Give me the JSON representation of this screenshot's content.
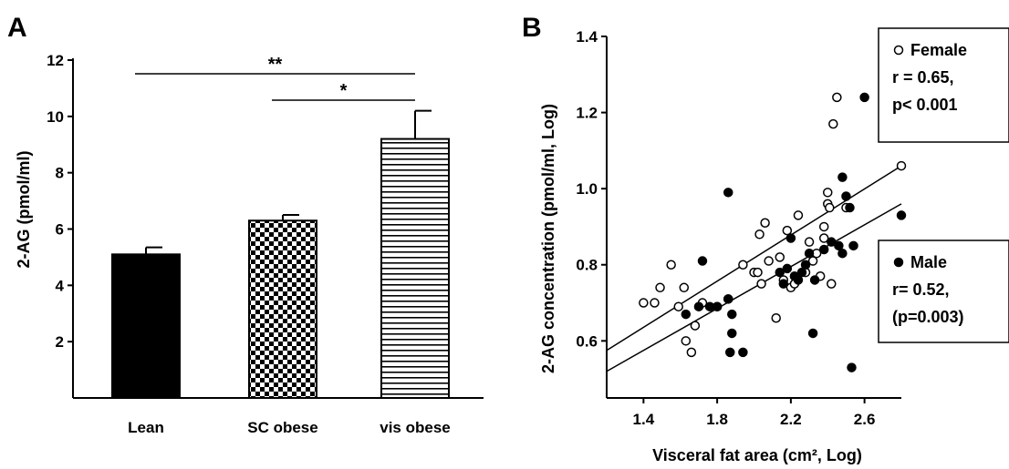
{
  "panels": {
    "A": "A",
    "B": "B"
  },
  "chart_data": [
    {
      "type": "bar",
      "panel": "A",
      "categories": [
        "Lean",
        "SC obese",
        "vis obese"
      ],
      "values": [
        5.1,
        6.3,
        9.2
      ],
      "errors": [
        0.25,
        0.2,
        1.0
      ],
      "ylabel": "2-AG (pmol/ml)",
      "ylim": [
        0,
        12
      ],
      "yticks": [
        2,
        4,
        6,
        8,
        10,
        12
      ],
      "fills": [
        "solid-black",
        "checkerboard",
        "horizontal-stripes"
      ],
      "significance": [
        {
          "from": "Lean",
          "to": "vis obese",
          "label": "**"
        },
        {
          "from": "SC obese",
          "to": "vis obese",
          "label": "*"
        }
      ],
      "grid": false
    },
    {
      "type": "scatter",
      "panel": "B",
      "xlabel": "Visceral fat area (cm², Log)",
      "ylabel": "2-AG concentration (pmol/ml, Log)",
      "xlim": [
        1.2,
        2.8
      ],
      "ylim": [
        0.45,
        1.4
      ],
      "xticks": [
        "1.4",
        "1.8",
        "2.2",
        "2.6"
      ],
      "yticks": [
        "0.6",
        "0.8",
        "1.0",
        "1.2",
        "1.4"
      ],
      "grid": false,
      "series": [
        {
          "name": "Female",
          "marker": "open-circle",
          "annotation": [
            "r = 0.65,",
            "p< 0.001"
          ],
          "points": [
            [
              1.4,
              0.7
            ],
            [
              1.46,
              0.7
            ],
            [
              1.49,
              0.74
            ],
            [
              1.55,
              0.8
            ],
            [
              1.59,
              0.69
            ],
            [
              1.62,
              0.74
            ],
            [
              1.63,
              0.6
            ],
            [
              1.66,
              0.57
            ],
            [
              1.68,
              0.64
            ],
            [
              1.72,
              0.7
            ],
            [
              1.8,
              0.69
            ],
            [
              1.86,
              0.71
            ],
            [
              1.94,
              0.8
            ],
            [
              2.0,
              0.78
            ],
            [
              2.02,
              0.78
            ],
            [
              2.03,
              0.88
            ],
            [
              2.04,
              0.75
            ],
            [
              2.06,
              0.91
            ],
            [
              2.08,
              0.81
            ],
            [
              2.12,
              0.66
            ],
            [
              2.14,
              0.82
            ],
            [
              2.16,
              0.76
            ],
            [
              2.18,
              0.89
            ],
            [
              2.2,
              0.74
            ],
            [
              2.22,
              0.75
            ],
            [
              2.24,
              0.93
            ],
            [
              2.28,
              0.78
            ],
            [
              2.3,
              0.86
            ],
            [
              2.32,
              0.81
            ],
            [
              2.34,
              0.83
            ],
            [
              2.36,
              0.77
            ],
            [
              2.38,
              0.87
            ],
            [
              2.38,
              0.9
            ],
            [
              2.4,
              0.96
            ],
            [
              2.4,
              0.99
            ],
            [
              2.41,
              0.95
            ],
            [
              2.42,
              0.75
            ],
            [
              2.43,
              1.17
            ],
            [
              2.45,
              1.24
            ],
            [
              2.5,
              0.95
            ],
            [
              2.8,
              1.06
            ]
          ],
          "fit": {
            "x0": 1.2,
            "y0": 0.575,
            "x1": 2.8,
            "y1": 1.06
          }
        },
        {
          "name": "Male",
          "marker": "filled-circle",
          "annotation": [
            "r= 0.52,",
            "(p=0.003)"
          ],
          "points": [
            [
              1.63,
              0.67
            ],
            [
              1.7,
              0.69
            ],
            [
              1.72,
              0.81
            ],
            [
              1.76,
              0.69
            ],
            [
              1.8,
              0.69
            ],
            [
              1.86,
              0.99
            ],
            [
              1.86,
              0.71
            ],
            [
              1.87,
              0.57
            ],
            [
              1.88,
              0.67
            ],
            [
              1.88,
              0.62
            ],
            [
              1.94,
              0.57
            ],
            [
              2.14,
              0.78
            ],
            [
              2.16,
              0.75
            ],
            [
              2.18,
              0.79
            ],
            [
              2.2,
              0.87
            ],
            [
              2.22,
              0.77
            ],
            [
              2.24,
              0.76
            ],
            [
              2.26,
              0.78
            ],
            [
              2.28,
              0.8
            ],
            [
              2.3,
              0.83
            ],
            [
              2.32,
              0.62
            ],
            [
              2.33,
              0.76
            ],
            [
              2.38,
              0.84
            ],
            [
              2.42,
              0.86
            ],
            [
              2.46,
              0.85
            ],
            [
              2.48,
              0.83
            ],
            [
              2.48,
              1.03
            ],
            [
              2.5,
              0.98
            ],
            [
              2.52,
              0.95
            ],
            [
              2.53,
              0.53
            ],
            [
              2.54,
              0.85
            ],
            [
              2.6,
              1.24
            ],
            [
              2.8,
              0.93
            ]
          ],
          "fit": {
            "x0": 1.2,
            "y0": 0.52,
            "x1": 2.8,
            "y1": 0.96
          }
        }
      ]
    }
  ]
}
